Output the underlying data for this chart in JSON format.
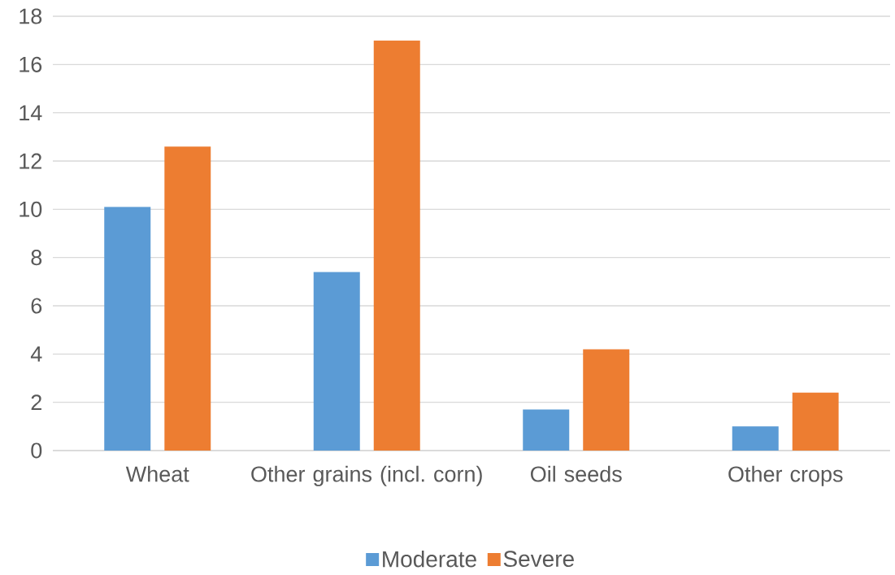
{
  "chart_data": {
    "type": "bar",
    "categories": [
      "Wheat",
      "Other grains (incl. corn)",
      "Oil seeds",
      "Other crops"
    ],
    "series": [
      {
        "name": "Moderate",
        "color": "#5b9bd5",
        "values": [
          10.1,
          7.4,
          1.7,
          1.0
        ]
      },
      {
        "name": "Severe",
        "color": "#ed7d31",
        "values": [
          12.6,
          17.0,
          4.2,
          2.4
        ]
      }
    ],
    "ylim": [
      0,
      18
    ],
    "yticks": [
      0,
      2,
      4,
      6,
      8,
      10,
      12,
      14,
      16,
      18
    ],
    "grid": "y",
    "legend": "bottom"
  }
}
